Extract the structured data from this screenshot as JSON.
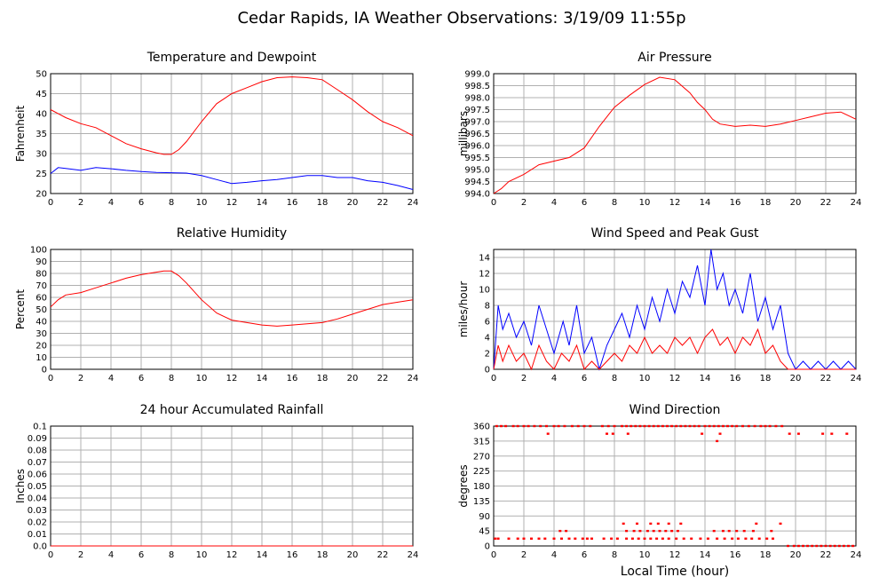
{
  "page": {
    "title": "Cedar Rapids, IA Weather Observations: 3/19/09 11:55p",
    "x_axis_label": "Local Time (hour)"
  },
  "colors": {
    "red": "#ff0000",
    "blue": "#0000ff",
    "grid": "#b0b0b0"
  },
  "chart_data": [
    {
      "id": "temp",
      "type": "line",
      "title": "Temperature and Dewpoint",
      "ylabel": "Fahrenheit",
      "xlabel": "",
      "xlim": [
        0,
        24
      ],
      "ylim": [
        20,
        50
      ],
      "xticks": [
        0,
        2,
        4,
        6,
        8,
        10,
        12,
        14,
        16,
        18,
        20,
        22,
        24
      ],
      "yticks": [
        20,
        25,
        30,
        35,
        40,
        45,
        50
      ],
      "ytick_labels": [
        "20",
        "25",
        "30",
        "35",
        "40",
        "45",
        "50"
      ],
      "grid": true,
      "series": [
        {
          "color": "#ff0000",
          "x": [
            0,
            1,
            2,
            3,
            4,
            5,
            6,
            7,
            7.5,
            8,
            8.5,
            9,
            10,
            11,
            12,
            13,
            14,
            15,
            16,
            17,
            18,
            19,
            20,
            21,
            22,
            23,
            24
          ],
          "y": [
            41,
            39,
            37.5,
            36.5,
            34.5,
            32.5,
            31.2,
            30.2,
            29.8,
            29.8,
            31,
            33,
            38,
            42.5,
            45,
            46.5,
            48,
            49,
            49.2,
            49,
            48.5,
            46,
            43.5,
            40.5,
            38,
            36.5,
            34.5
          ]
        },
        {
          "color": "#0000ff",
          "x": [
            0,
            0.5,
            1,
            2,
            3,
            4,
            5,
            6,
            7,
            8,
            9,
            10,
            11,
            12,
            13,
            14,
            15,
            16,
            17,
            18,
            19,
            20,
            21,
            22,
            23,
            24
          ],
          "y": [
            25,
            26.5,
            26.3,
            25.8,
            26.5,
            26.2,
            25.8,
            25.5,
            25.3,
            25.2,
            25.1,
            24.5,
            23.5,
            22.5,
            22.8,
            23.2,
            23.5,
            24,
            24.5,
            24.5,
            24,
            24,
            23.2,
            22.8,
            22,
            21
          ]
        }
      ]
    },
    {
      "id": "pressure",
      "type": "line",
      "title": "Air Pressure",
      "ylabel": "millibars",
      "xlabel": "",
      "xlim": [
        0,
        24
      ],
      "ylim": [
        994,
        999
      ],
      "xticks": [
        0,
        2,
        4,
        6,
        8,
        10,
        12,
        14,
        16,
        18,
        20,
        22,
        24
      ],
      "yticks": [
        994,
        994.5,
        995,
        995.5,
        996,
        996.5,
        997,
        997.5,
        998,
        998.5,
        999
      ],
      "ytick_labels": [
        "994.0",
        "994.5",
        "995.0",
        "995.5",
        "996.0",
        "996.5",
        "997.0",
        "997.5",
        "998.0",
        "998.5",
        "999.0"
      ],
      "grid": true,
      "series": [
        {
          "color": "#ff0000",
          "x": [
            0,
            0.5,
            1,
            2,
            3,
            4,
            5,
            6,
            7,
            8,
            9,
            10,
            11,
            12,
            13,
            13.5,
            14,
            14.5,
            15,
            16,
            17,
            18,
            19,
            20,
            21,
            22,
            23,
            24
          ],
          "y": [
            994.0,
            994.2,
            994.5,
            994.8,
            995.2,
            995.35,
            995.5,
            995.9,
            996.8,
            997.6,
            998.1,
            998.55,
            998.85,
            998.75,
            998.2,
            997.8,
            997.5,
            997.1,
            996.9,
            996.8,
            996.85,
            996.8,
            996.9,
            997.05,
            997.2,
            997.35,
            997.4,
            997.1
          ]
        }
      ]
    },
    {
      "id": "humidity",
      "type": "line",
      "title": "Relative Humidity",
      "ylabel": "Percent",
      "xlabel": "",
      "xlim": [
        0,
        24
      ],
      "ylim": [
        0,
        100
      ],
      "xticks": [
        0,
        2,
        4,
        6,
        8,
        10,
        12,
        14,
        16,
        18,
        20,
        22,
        24
      ],
      "yticks": [
        0,
        10,
        20,
        30,
        40,
        50,
        60,
        70,
        80,
        90,
        100
      ],
      "ytick_labels": [
        "0",
        "10",
        "20",
        "30",
        "40",
        "50",
        "60",
        "70",
        "80",
        "90",
        "100"
      ],
      "grid": true,
      "series": [
        {
          "color": "#ff0000",
          "x": [
            0,
            0.5,
            1,
            2,
            3,
            4,
            5,
            6,
            7,
            7.5,
            8,
            8.5,
            9,
            10,
            11,
            12,
            13,
            14,
            15,
            16,
            17,
            18,
            19,
            20,
            21,
            22,
            23,
            24
          ],
          "y": [
            52,
            58,
            62,
            64,
            68,
            72,
            76,
            79,
            81,
            82,
            82,
            78,
            72,
            58,
            47,
            41,
            39,
            37,
            36,
            37,
            38,
            39,
            42,
            46,
            50,
            54,
            56,
            58
          ]
        }
      ]
    },
    {
      "id": "wind",
      "type": "line",
      "title": "Wind Speed and Peak Gust",
      "ylabel": "miles/hour",
      "xlabel": "",
      "xlim": [
        0,
        24
      ],
      "ylim": [
        0,
        15
      ],
      "xticks": [
        0,
        2,
        4,
        6,
        8,
        10,
        12,
        14,
        16,
        18,
        20,
        22,
        24
      ],
      "yticks": [
        0,
        2,
        4,
        6,
        8,
        10,
        12,
        14
      ],
      "ytick_labels": [
        "0",
        "2",
        "4",
        "6",
        "8",
        "10",
        "12",
        "14"
      ],
      "grid": true,
      "series": [
        {
          "color": "#0000ff",
          "x": [
            0,
            0.3,
            0.6,
            1,
            1.5,
            2,
            2.5,
            3,
            3.5,
            4,
            4.3,
            4.6,
            5,
            5.5,
            6,
            6.5,
            7,
            7.5,
            8,
            8.5,
            9,
            9.5,
            10,
            10.5,
            11,
            11.5,
            12,
            12.5,
            13,
            13.5,
            14,
            14.4,
            14.8,
            15.2,
            15.6,
            16,
            16.5,
            17,
            17.5,
            18,
            18.5,
            19,
            19.5,
            20,
            20.5,
            21,
            21.5,
            22,
            22.5,
            23,
            23.5,
            24
          ],
          "y": [
            0,
            8,
            5,
            7,
            4,
            6,
            3,
            8,
            5,
            2,
            4,
            6,
            3,
            8,
            2,
            4,
            0,
            3,
            5,
            7,
            4,
            8,
            5,
            9,
            6,
            10,
            7,
            11,
            9,
            13,
            8,
            15,
            10,
            12,
            8,
            10,
            7,
            12,
            6,
            9,
            5,
            8,
            2,
            0,
            1,
            0,
            1,
            0,
            1,
            0,
            1,
            0
          ]
        },
        {
          "color": "#ff0000",
          "x": [
            0,
            0.3,
            0.6,
            1,
            1.5,
            2,
            2.5,
            3,
            3.5,
            4,
            4.5,
            5,
            5.5,
            6,
            6.5,
            7,
            7.5,
            8,
            8.5,
            9,
            9.5,
            10,
            10.5,
            11,
            11.5,
            12,
            12.5,
            13,
            13.5,
            14,
            14.5,
            15,
            15.5,
            16,
            16.5,
            17,
            17.5,
            18,
            18.5,
            19,
            19.5,
            20,
            24
          ],
          "y": [
            0,
            3,
            1,
            3,
            1,
            2,
            0,
            3,
            1,
            0,
            2,
            1,
            3,
            0,
            1,
            0,
            1,
            2,
            1,
            3,
            2,
            4,
            2,
            3,
            2,
            4,
            3,
            4,
            2,
            4,
            5,
            3,
            4,
            2,
            4,
            3,
            5,
            2,
            3,
            1,
            0,
            0,
            0
          ]
        }
      ]
    },
    {
      "id": "rain",
      "type": "line",
      "title": "24 hour Accumulated Rainfall",
      "ylabel": "Inches",
      "xlabel": "",
      "xlim": [
        0,
        24
      ],
      "ylim": [
        0,
        0.1
      ],
      "xticks": [
        0,
        2,
        4,
        6,
        8,
        10,
        12,
        14,
        16,
        18,
        20,
        22,
        24
      ],
      "yticks": [
        0,
        0.01,
        0.02,
        0.03,
        0.04,
        0.05,
        0.06,
        0.07,
        0.08,
        0.09,
        0.1
      ],
      "ytick_labels": [
        "0.0",
        "0.01",
        "0.02",
        "0.03",
        "0.04",
        "0.05",
        "0.06",
        "0.07",
        "0.08",
        "0.09",
        "0.1"
      ],
      "grid": true,
      "series": [
        {
          "color": "#ff0000",
          "x": [
            0,
            24
          ],
          "y": [
            0,
            0
          ]
        }
      ]
    },
    {
      "id": "direction",
      "type": "scatter",
      "title": "Wind Direction",
      "ylabel": "degrees",
      "xlabel": "Local Time (hour)",
      "xlim": [
        0,
        24
      ],
      "ylim": [
        0,
        360
      ],
      "xticks": [
        0,
        2,
        4,
        6,
        8,
        10,
        12,
        14,
        16,
        18,
        20,
        22,
        24
      ],
      "yticks": [
        0,
        45,
        90,
        135,
        180,
        225,
        270,
        315,
        360
      ],
      "ytick_labels": [
        "0",
        "45",
        "90",
        "135",
        "180",
        "225",
        "270",
        "315",
        "360"
      ],
      "grid": true,
      "series": [
        {
          "color": "#ff0000",
          "x": [
            0.2,
            0.5,
            0.8,
            1.3,
            1.6,
            2.0,
            2.3,
            2.7,
            3.1,
            3.5,
            4.0,
            4.3,
            4.7,
            5.2,
            5.6,
            6.0,
            6.4,
            7.2,
            7.6,
            8.0,
            8.5,
            8.8,
            9.1,
            9.4,
            9.7,
            10.0,
            10.3,
            10.6,
            10.9,
            11.2,
            11.5,
            11.8,
            12.1,
            12.4,
            12.7,
            13.0,
            13.3,
            13.6,
            14.0,
            14.3,
            14.6,
            14.9,
            15.2,
            15.5,
            15.8,
            16.1,
            16.5,
            16.9,
            17.3,
            17.7,
            18.0,
            18.3,
            18.7,
            19.1,
            19.5,
            19.9,
            20.2,
            20.5,
            20.8,
            21.1,
            21.4,
            21.7,
            22.0,
            22.3,
            22.6,
            22.9,
            23.2,
            23.5,
            23.8,
            0.1,
            0.3,
            1.0,
            1.6,
            2.0,
            2.5,
            3.0,
            3.4,
            4.0,
            4.5,
            5.0,
            5.4,
            5.9,
            6.2,
            6.5,
            7.3,
            7.8,
            8.2,
            8.8,
            9.2,
            9.6,
            10.0,
            10.4,
            10.8,
            11.2,
            11.6,
            12.1,
            12.6,
            13.1,
            13.7,
            14.2,
            14.8,
            15.3,
            15.8,
            16.2,
            16.7,
            17.1,
            17.6,
            18.1,
            18.5,
            4.4,
            4.8,
            8.8,
            9.3,
            9.7,
            10.2,
            10.6,
            11.0,
            11.4,
            11.8,
            12.2,
            14.6,
            15.2,
            15.6,
            16.1,
            16.6,
            17.2,
            18.4,
            8.6,
            9.5,
            10.4,
            10.9,
            11.6,
            12.4,
            17.4,
            19.0,
            3.6,
            7.5,
            7.9,
            8.9,
            13.8,
            15.0,
            19.6,
            20.2,
            21.8,
            22.4,
            23.4,
            14.8
          ],
          "y": [
            360,
            360,
            360,
            360,
            360,
            360,
            360,
            360,
            360,
            360,
            360,
            360,
            360,
            360,
            360,
            360,
            360,
            360,
            360,
            360,
            360,
            360,
            360,
            360,
            360,
            360,
            360,
            360,
            360,
            360,
            360,
            360,
            360,
            360,
            360,
            360,
            360,
            360,
            360,
            360,
            360,
            360,
            360,
            360,
            360,
            360,
            360,
            360,
            360,
            360,
            360,
            360,
            360,
            360,
            0,
            0,
            0,
            0,
            0,
            0,
            0,
            0,
            0,
            0,
            0,
            0,
            0,
            0,
            0,
            22,
            22,
            22,
            22,
            22,
            22,
            22,
            22,
            22,
            22,
            22,
            22,
            22,
            22,
            22,
            22,
            22,
            22,
            22,
            22,
            22,
            22,
            22,
            22,
            22,
            22,
            22,
            22,
            22,
            22,
            22,
            22,
            22,
            22,
            22,
            22,
            22,
            22,
            22,
            22,
            45,
            45,
            45,
            45,
            45,
            45,
            45,
            45,
            45,
            45,
            45,
            45,
            45,
            45,
            45,
            45,
            45,
            45,
            67,
            67,
            67,
            67,
            67,
            67,
            67,
            67,
            337,
            337,
            337,
            337,
            337,
            337,
            337,
            337,
            337,
            337,
            337,
            315
          ]
        }
      ]
    }
  ]
}
